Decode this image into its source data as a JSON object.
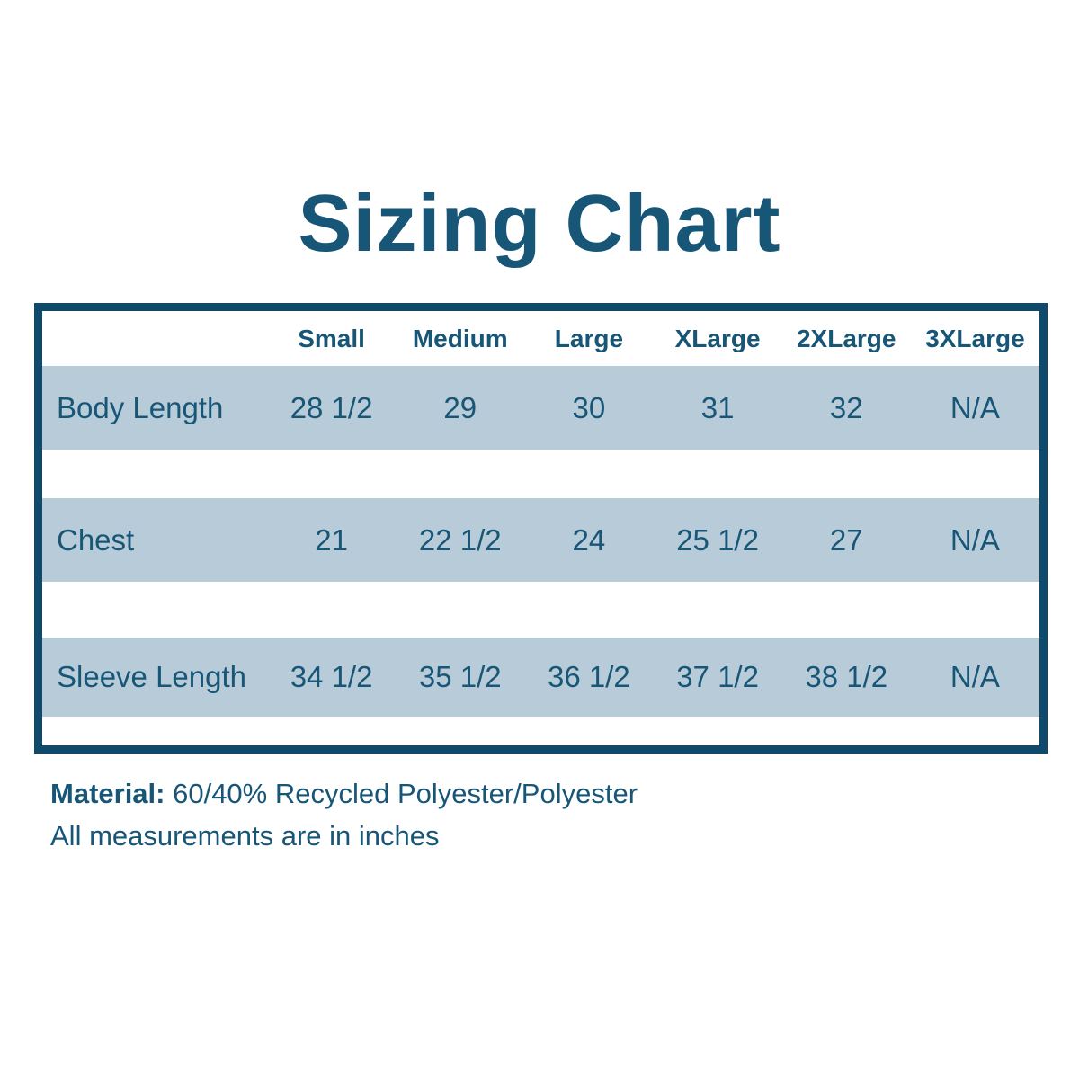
{
  "title": "Sizing Chart",
  "chart_data": {
    "type": "table",
    "title": "Sizing Chart",
    "columns": [
      "Small",
      "Medium",
      "Large",
      "XLarge",
      "2XLarge",
      "3XLarge"
    ],
    "rows": [
      {
        "label": "Body Length",
        "values": [
          "28 1/2",
          "29",
          "30",
          "31",
          "32",
          "N/A"
        ]
      },
      {
        "label": "Chest",
        "values": [
          "21",
          "22 1/2",
          "24",
          "25 1/2",
          "27",
          "N/A"
        ]
      },
      {
        "label": "Sleeve Length",
        "values": [
          "34 1/2",
          "35 1/2",
          "36 1/2",
          "37 1/2",
          "38 1/2",
          "N/A"
        ]
      }
    ],
    "units": "inches",
    "layout": "row labels left, size columns centered, alternating white gaps between shaded rows"
  },
  "notes": {
    "material_label": "Material:",
    "material_value": " 60/40% Recycled Polyester/Polyester",
    "measurements_note": "All measurements are in inches"
  },
  "colors": {
    "text": "#175677",
    "border": "#0f4a6c",
    "row_background": "#b8cbd8",
    "page_background": "#ffffff"
  }
}
